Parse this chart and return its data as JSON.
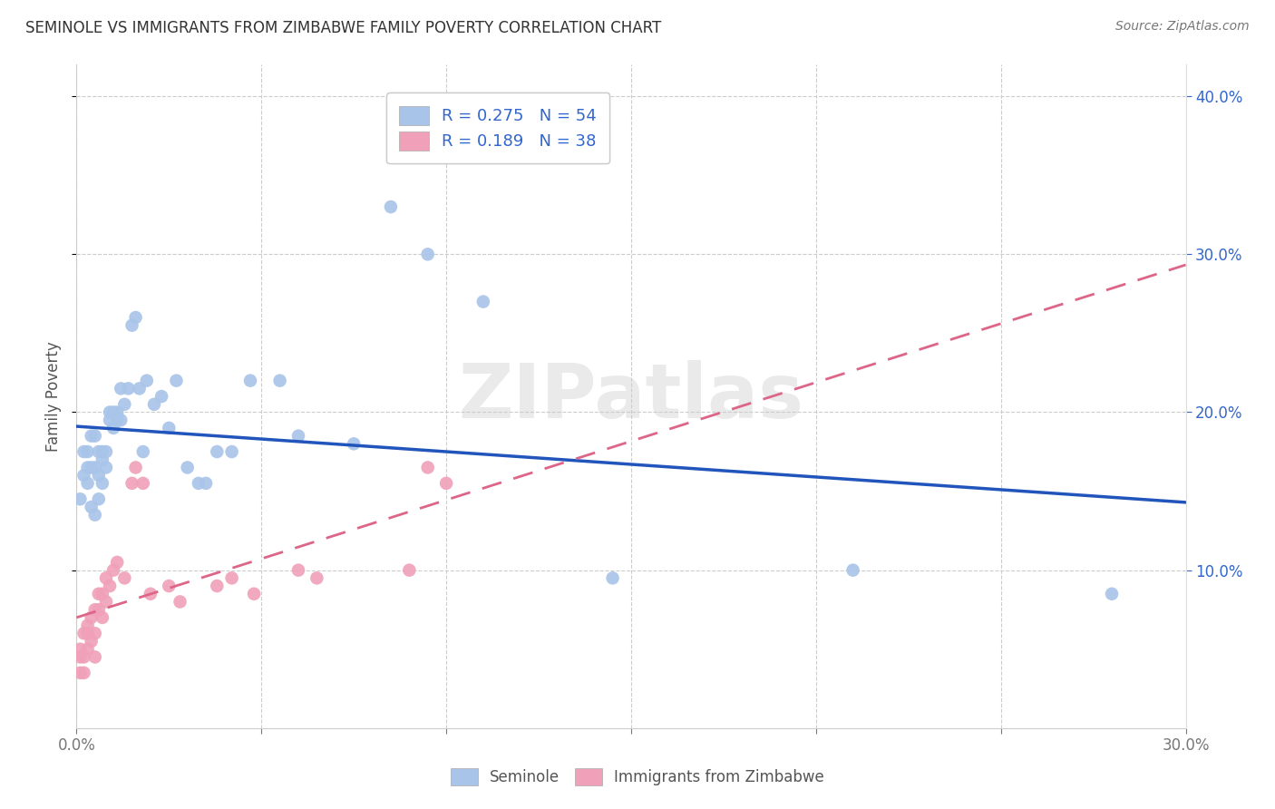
{
  "title": "SEMINOLE VS IMMIGRANTS FROM ZIMBABWE FAMILY POVERTY CORRELATION CHART",
  "source": "Source: ZipAtlas.com",
  "ylabel": "Family Poverty",
  "xlim": [
    0.0,
    0.3
  ],
  "ylim": [
    0.0,
    0.42
  ],
  "xticks": [
    0.0,
    0.05,
    0.1,
    0.15,
    0.2,
    0.25,
    0.3
  ],
  "xticklabels": [
    "0.0%",
    "",
    "",
    "",
    "",
    "",
    "30.0%"
  ],
  "yticks": [
    0.1,
    0.2,
    0.3,
    0.4
  ],
  "yticklabels": [
    "10.0%",
    "20.0%",
    "30.0%",
    "40.0%"
  ],
  "legend_labels": [
    "Seminole",
    "Immigrants from Zimbabwe"
  ],
  "blue_color": "#A8C4E8",
  "pink_color": "#F0A0B8",
  "blue_line_color": "#2255BB",
  "pink_line_color": "#DD6688",
  "R_blue": 0.275,
  "N_blue": 54,
  "R_pink": 0.189,
  "N_pink": 38,
  "blue_scatter_x": [
    0.001,
    0.002,
    0.002,
    0.003,
    0.003,
    0.003,
    0.004,
    0.004,
    0.004,
    0.005,
    0.005,
    0.005,
    0.006,
    0.006,
    0.006,
    0.007,
    0.007,
    0.007,
    0.008,
    0.008,
    0.009,
    0.009,
    0.01,
    0.01,
    0.011,
    0.011,
    0.012,
    0.012,
    0.013,
    0.014,
    0.015,
    0.016,
    0.017,
    0.018,
    0.019,
    0.021,
    0.023,
    0.025,
    0.027,
    0.03,
    0.033,
    0.035,
    0.038,
    0.042,
    0.047,
    0.055,
    0.06,
    0.075,
    0.085,
    0.095,
    0.11,
    0.145,
    0.21,
    0.28
  ],
  "blue_scatter_y": [
    0.145,
    0.16,
    0.175,
    0.155,
    0.165,
    0.175,
    0.14,
    0.165,
    0.185,
    0.135,
    0.165,
    0.185,
    0.145,
    0.16,
    0.175,
    0.155,
    0.17,
    0.175,
    0.165,
    0.175,
    0.2,
    0.195,
    0.19,
    0.2,
    0.195,
    0.2,
    0.195,
    0.215,
    0.205,
    0.215,
    0.255,
    0.26,
    0.215,
    0.175,
    0.22,
    0.205,
    0.21,
    0.19,
    0.22,
    0.165,
    0.155,
    0.155,
    0.175,
    0.175,
    0.22,
    0.22,
    0.185,
    0.18,
    0.33,
    0.3,
    0.27,
    0.095,
    0.1,
    0.085
  ],
  "pink_scatter_x": [
    0.001,
    0.001,
    0.001,
    0.002,
    0.002,
    0.002,
    0.003,
    0.003,
    0.003,
    0.004,
    0.004,
    0.005,
    0.005,
    0.005,
    0.006,
    0.006,
    0.007,
    0.007,
    0.008,
    0.008,
    0.009,
    0.01,
    0.011,
    0.013,
    0.015,
    0.016,
    0.018,
    0.02,
    0.025,
    0.028,
    0.038,
    0.042,
    0.048,
    0.06,
    0.065,
    0.09,
    0.095,
    0.1
  ],
  "pink_scatter_y": [
    0.05,
    0.045,
    0.035,
    0.06,
    0.045,
    0.035,
    0.065,
    0.06,
    0.05,
    0.07,
    0.055,
    0.075,
    0.06,
    0.045,
    0.085,
    0.075,
    0.085,
    0.07,
    0.095,
    0.08,
    0.09,
    0.1,
    0.105,
    0.095,
    0.155,
    0.165,
    0.155,
    0.085,
    0.09,
    0.08,
    0.09,
    0.095,
    0.085,
    0.1,
    0.095,
    0.1,
    0.165,
    0.155
  ],
  "watermark": "ZIPatlas",
  "background_color": "#ffffff",
  "grid_color": "#cccccc",
  "tick_color": "#3366CC",
  "title_color": "#333333",
  "source_color": "#777777"
}
